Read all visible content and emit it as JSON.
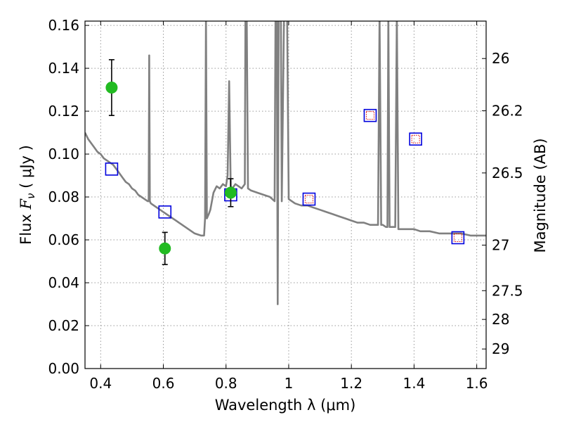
{
  "chart_data": {
    "type": "scatter",
    "xlabel": "Wavelength  λ (μm)",
    "ylabel_prefix": "Flux  ",
    "ylabel_var": "F",
    "ylabel_sub": "ν",
    "ylabel_unit": "  ( μJy )",
    "y2label": "Magnitude (AB)",
    "xlim": [
      0.35,
      1.63
    ],
    "ylim": [
      0.0,
      0.162
    ],
    "grid": true,
    "x_ticks": [
      {
        "v": 0.4,
        "label": "0.4"
      },
      {
        "v": 0.6,
        "label": "0.6"
      },
      {
        "v": 0.8,
        "label": "0.8"
      },
      {
        "v": 1.0,
        "label": "1"
      },
      {
        "v": 1.2,
        "label": "1.2"
      },
      {
        "v": 1.4,
        "label": "1.4"
      },
      {
        "v": 1.6,
        "label": "1.6"
      }
    ],
    "y_ticks": [
      {
        "v": 0.0,
        "label": "0.00"
      },
      {
        "v": 0.02,
        "label": "0.02"
      },
      {
        "v": 0.04,
        "label": "0.04"
      },
      {
        "v": 0.06,
        "label": "0.06"
      },
      {
        "v": 0.08,
        "label": "0.08"
      },
      {
        "v": 0.1,
        "label": "0.10"
      },
      {
        "v": 0.12,
        "label": "0.12"
      },
      {
        "v": 0.14,
        "label": "0.14"
      },
      {
        "v": 0.16,
        "label": "0.16"
      }
    ],
    "mag_ticks": [
      {
        "mag": 26,
        "label": "26"
      },
      {
        "mag": 26.2,
        "label": "26.2"
      },
      {
        "mag": 26.5,
        "label": "26.5"
      },
      {
        "mag": 27,
        "label": "27"
      },
      {
        "mag": 27.5,
        "label": "27.5"
      },
      {
        "mag": 28,
        "label": "28"
      },
      {
        "mag": 29,
        "label": "29"
      }
    ],
    "colors": {
      "spectrum": "#808080",
      "observed": "#22bb22",
      "model_box": "#0000dd",
      "model_inner": "#dd0000",
      "errorbar": "#000000",
      "grid": "#999999"
    },
    "series": [
      {
        "type": "line",
        "points": [
          [
            0.35,
            0.11
          ],
          [
            0.36,
            0.107
          ],
          [
            0.37,
            0.105
          ],
          [
            0.38,
            0.103
          ],
          [
            0.39,
            0.101
          ],
          [
            0.4,
            0.1
          ],
          [
            0.41,
            0.098
          ],
          [
            0.42,
            0.097
          ],
          [
            0.43,
            0.096
          ],
          [
            0.44,
            0.095
          ],
          [
            0.45,
            0.093
          ],
          [
            0.46,
            0.091
          ],
          [
            0.47,
            0.089
          ],
          [
            0.48,
            0.087
          ],
          [
            0.49,
            0.086
          ],
          [
            0.5,
            0.084
          ],
          [
            0.51,
            0.083
          ],
          [
            0.52,
            0.081
          ],
          [
            0.53,
            0.08
          ],
          [
            0.54,
            0.079
          ],
          [
            0.55,
            0.078
          ],
          [
            0.553,
            0.078
          ],
          [
            0.555,
            0.146
          ],
          [
            0.557,
            0.078
          ],
          [
            0.56,
            0.077
          ],
          [
            0.58,
            0.075
          ],
          [
            0.6,
            0.073
          ],
          [
            0.62,
            0.071
          ],
          [
            0.64,
            0.069
          ],
          [
            0.66,
            0.067
          ],
          [
            0.68,
            0.065
          ],
          [
            0.7,
            0.063
          ],
          [
            0.72,
            0.062
          ],
          [
            0.73,
            0.062
          ],
          [
            0.733,
            0.07
          ],
          [
            0.736,
            0.165
          ],
          [
            0.739,
            0.07
          ],
          [
            0.745,
            0.072
          ],
          [
            0.75,
            0.074
          ],
          [
            0.76,
            0.082
          ],
          [
            0.77,
            0.085
          ],
          [
            0.78,
            0.084
          ],
          [
            0.79,
            0.086
          ],
          [
            0.8,
            0.085
          ],
          [
            0.805,
            0.09
          ],
          [
            0.81,
            0.134
          ],
          [
            0.815,
            0.085
          ],
          [
            0.82,
            0.084
          ],
          [
            0.83,
            0.086
          ],
          [
            0.84,
            0.085
          ],
          [
            0.85,
            0.084
          ],
          [
            0.86,
            0.086
          ],
          [
            0.862,
            0.165
          ],
          [
            0.866,
            0.165
          ],
          [
            0.87,
            0.084
          ],
          [
            0.88,
            0.083
          ],
          [
            0.9,
            0.082
          ],
          [
            0.92,
            0.081
          ],
          [
            0.94,
            0.08
          ],
          [
            0.955,
            0.078
          ],
          [
            0.958,
            0.165
          ],
          [
            0.962,
            0.165
          ],
          [
            0.965,
            0.03
          ],
          [
            0.968,
            0.165
          ],
          [
            0.975,
            0.165
          ],
          [
            0.978,
            0.078
          ],
          [
            0.985,
            0.165
          ],
          [
            0.99,
            0.165
          ],
          [
            0.995,
            0.165
          ],
          [
            1.0,
            0.079
          ],
          [
            1.02,
            0.077
          ],
          [
            1.04,
            0.076
          ],
          [
            1.06,
            0.076
          ],
          [
            1.08,
            0.075
          ],
          [
            1.1,
            0.074
          ],
          [
            1.12,
            0.073
          ],
          [
            1.14,
            0.072
          ],
          [
            1.16,
            0.071
          ],
          [
            1.18,
            0.07
          ],
          [
            1.2,
            0.069
          ],
          [
            1.22,
            0.068
          ],
          [
            1.24,
            0.068
          ],
          [
            1.26,
            0.067
          ],
          [
            1.28,
            0.067
          ],
          [
            1.285,
            0.067
          ],
          [
            1.29,
            0.165
          ],
          [
            1.295,
            0.067
          ],
          [
            1.3,
            0.067
          ],
          [
            1.31,
            0.066
          ],
          [
            1.315,
            0.066
          ],
          [
            1.318,
            0.165
          ],
          [
            1.322,
            0.066
          ],
          [
            1.33,
            0.066
          ],
          [
            1.34,
            0.066
          ],
          [
            1.345,
            0.165
          ],
          [
            1.35,
            0.065
          ],
          [
            1.38,
            0.065
          ],
          [
            1.4,
            0.065
          ],
          [
            1.42,
            0.064
          ],
          [
            1.45,
            0.064
          ],
          [
            1.48,
            0.063
          ],
          [
            1.5,
            0.063
          ],
          [
            1.52,
            0.063
          ],
          [
            1.55,
            0.063
          ],
          [
            1.58,
            0.062
          ],
          [
            1.6,
            0.062
          ],
          [
            1.63,
            0.062
          ]
        ]
      },
      {
        "type": "scatter",
        "marker": "circle",
        "points": [
          {
            "x": 0.435,
            "y": 0.131,
            "err": 0.013
          },
          {
            "x": 0.605,
            "y": 0.056,
            "err": 0.0075
          },
          {
            "x": 0.815,
            "y": 0.082,
            "err": 0.0065
          }
        ]
      },
      {
        "type": "scatter",
        "marker": "square",
        "points": [
          {
            "x": 0.435,
            "y": 0.093,
            "inner": false
          },
          {
            "x": 0.605,
            "y": 0.073,
            "inner": false
          },
          {
            "x": 0.815,
            "y": 0.081,
            "inner": false
          },
          {
            "x": 1.065,
            "y": 0.079,
            "inner": true
          },
          {
            "x": 1.26,
            "y": 0.118,
            "inner": true
          },
          {
            "x": 1.405,
            "y": 0.107,
            "inner": true
          },
          {
            "x": 1.54,
            "y": 0.061,
            "inner": true
          }
        ]
      }
    ]
  }
}
